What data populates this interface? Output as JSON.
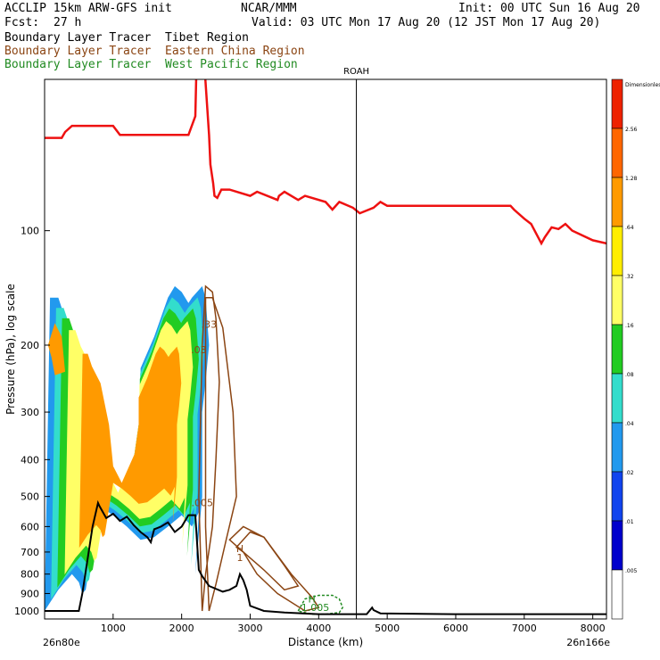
{
  "header": {
    "model": "ACCLIP 15km ARW-GFS init",
    "org": "NCAR/MMM",
    "init": "Init: 00 UTC Sun 16 Aug 20",
    "fcst_label": "Fcst:",
    "fcst_value": "27 h",
    "valid": "Valid: 03 UTC Mon 17 Aug 20 (12 JST Mon 17 Aug 20)",
    "legend": [
      {
        "text": "Boundary Layer Tracer  Tibet Region",
        "color": "#000000"
      },
      {
        "text": "Boundary Layer Tracer  Eastern China Region",
        "color": "#8b4513"
      },
      {
        "text": "Boundary Layer Tracer  West Pacific Region",
        "color": "#228b22"
      }
    ]
  },
  "colors": {
    "tropopause": "#ee1111",
    "terrain": "#000000",
    "eastern_china": "#8b4513",
    "west_pacific": "#228b22"
  },
  "chart_data": {
    "type": "heatmap",
    "title": "",
    "xlabel": "Distance (km)",
    "ylabel": "Pressure (hPa), log scale",
    "x_range": [
      0,
      8200
    ],
    "y_range": [
      1050,
      40
    ],
    "y_scale": "log",
    "x_ticks": [
      1000,
      2000,
      3000,
      4000,
      5000,
      6000,
      7000,
      8000
    ],
    "y_ticks": [
      100,
      200,
      300,
      400,
      500,
      600,
      700,
      800,
      900,
      1000
    ],
    "x_start_label": "26n80e",
    "x_end_label": "26n166e",
    "marker": {
      "label": "ROAH",
      "x": 4550
    },
    "colorbar": {
      "levels": [
        "Dimensionless",
        "2.56",
        "1.28",
        ".64",
        ".32",
        ".16",
        ".08",
        ".04",
        ".02",
        ".01",
        ".005"
      ],
      "colors": [
        "#ee2200",
        "#ff6600",
        "#ff9a00",
        "#ffee00",
        "#ffff66",
        "#22cc22",
        "#33ddcc",
        "#2299ee",
        "#1144ee",
        "#0000cc",
        "#ffffff"
      ]
    },
    "tropopause_line": {
      "x": [
        0,
        250,
        300,
        400,
        500,
        600,
        700,
        1000,
        1100,
        2100,
        2200,
        2250,
        2300,
        2400,
        2420,
        2460,
        2480,
        2520,
        2580,
        2700,
        3000,
        3100,
        3400,
        3420,
        3500,
        3700,
        3800,
        4100,
        4200,
        4300,
        4500,
        4600,
        4800,
        4900,
        5000,
        6500,
        6800,
        6850,
        7000,
        7100,
        7250,
        7300,
        7400,
        7500,
        7600,
        7700,
        8000,
        8200
      ],
      "p": [
        57,
        57,
        55,
        53,
        53,
        53,
        53,
        53,
        56,
        56,
        50,
        20,
        30,
        56,
        67,
        75,
        81,
        82,
        78,
        78,
        81,
        79,
        83,
        81,
        79,
        83,
        81,
        84,
        88,
        84,
        87,
        90,
        87,
        84,
        86,
        86,
        86,
        88,
        93,
        96,
        108,
        104,
        98,
        99,
        96,
        100,
        106,
        108
      ]
    },
    "terrain_line": {
      "x": [
        0,
        100,
        500,
        550,
        700,
        780,
        800,
        900,
        1000,
        1100,
        1200,
        1300,
        1400,
        1500,
        1550,
        1600,
        1700,
        1800,
        1900,
        2000,
        2100,
        2150,
        2200,
        2250,
        2300,
        2400,
        2600,
        2700,
        2800,
        2850,
        2900,
        2950,
        3000,
        3200,
        3500,
        4000,
        4550,
        4700,
        4780,
        4800,
        4900,
        5500,
        6000,
        7000,
        8000,
        8200
      ],
      "p": [
        1000,
        1000,
        1000,
        900,
        600,
        520,
        530,
        570,
        555,
        580,
        565,
        595,
        620,
        640,
        660,
        610,
        600,
        585,
        620,
        600,
        560,
        560,
        560,
        780,
        810,
        860,
        890,
        880,
        860,
        800,
        830,
        880,
        970,
        1000,
        1010,
        1020,
        1020,
        1020,
        980,
        995,
        1015,
        1018,
        1020,
        1020,
        1020,
        1020
      ]
    },
    "tibet_tracer": {
      "outer_x": [
        0,
        80,
        200,
        300,
        500,
        700,
        800,
        1000,
        1300,
        1400,
        1400,
        1600,
        1800,
        1900,
        2000,
        2100,
        2150,
        2300,
        2350,
        2400,
        2350,
        2300,
        2300,
        2200,
        2250,
        2150,
        2000,
        1800,
        1600,
        1400,
        1200,
        1000,
        800,
        600,
        550,
        500,
        400,
        200,
        0
      ],
      "outer_p": [
        1000,
        150,
        150,
        170,
        200,
        300,
        450,
        530,
        400,
        300,
        230,
        190,
        150,
        140,
        145,
        155,
        150,
        140,
        150,
        200,
        250,
        300,
        500,
        800,
        550,
        600,
        560,
        600,
        640,
        650,
        600,
        560,
        530,
        880,
        900,
        840,
        800,
        880,
        1000
      ],
      "orange_x": [
        50,
        150,
        250,
        300,
        150,
        100,
        50
      ],
      "orange_p": [
        200,
        175,
        190,
        235,
        240,
        215,
        200
      ],
      "bands": [
        {
          "level": ".005",
          "color": "#2299ee"
        },
        {
          "level": ".16",
          "color": "#33ddcc"
        },
        {
          "level": ".32",
          "color": "#22cc22"
        },
        {
          "level": ".64",
          "color": "#ffff66"
        },
        {
          "level": "1.28",
          "color": "#ff9a00"
        }
      ]
    },
    "eastern_china_contours": {
      "labels": [
        {
          "text": ".33",
          "x": 2400,
          "p": 180
        },
        {
          "text": ".03",
          "x": 2250,
          "p": 210
        },
        {
          "text": ".005",
          "x": 2300,
          "p": 530
        },
        {
          "text": "H",
          "x": 2850,
          "p": 700
        },
        {
          "text": "1",
          "x": 2850,
          "p": 740
        }
      ]
    },
    "west_pacific_contours": {
      "labels": [
        {
          "text": "H",
          "x": 3900,
          "p": 950
        },
        {
          "text": "1.005",
          "x": 3950,
          "p": 1000
        }
      ]
    }
  }
}
